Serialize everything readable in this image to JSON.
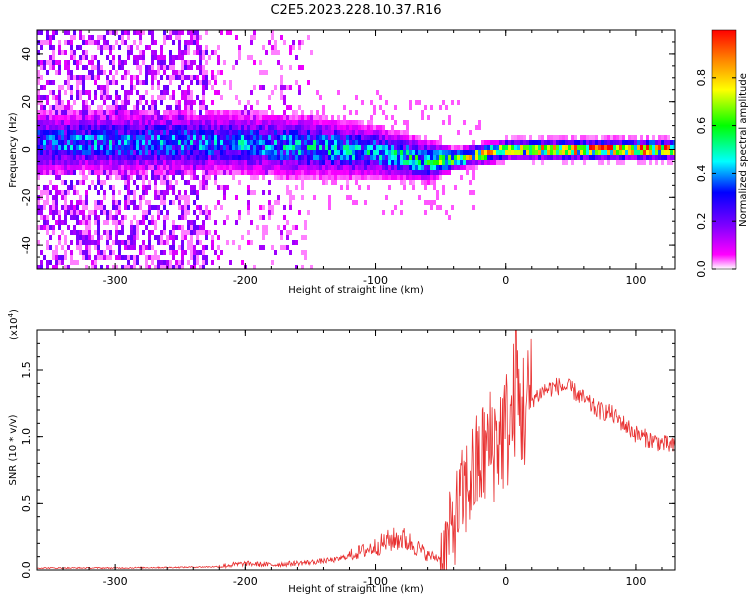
{
  "title": "C2E5.2023.228.10.37.R16",
  "chart_data": [
    {
      "type": "heatmap",
      "xlabel": "Height of straight line (km)",
      "ylabel": "Frequency (Hz)",
      "xlim": [
        -360,
        130
      ],
      "ylim": [
        -50,
        50
      ],
      "x_ticks": [
        -300,
        -200,
        -100,
        0,
        100
      ],
      "y_ticks": [
        -40,
        -20,
        0,
        20,
        40
      ],
      "colorbar": {
        "label": "Normalized spectral amplitude",
        "range": [
          0,
          1
        ],
        "ticks": [
          0.0,
          0.2,
          0.4,
          0.6,
          0.8
        ],
        "tick_labels": [
          "0.0",
          "0.2",
          "0.4",
          "0.6",
          "0.8"
        ],
        "colors": [
          "#ffffff",
          "#ff00ff",
          "#8000ff",
          "#0000ff",
          "#00ffff",
          "#00ff00",
          "#ffff00",
          "#ff0000"
        ]
      },
      "signal_band": [
        {
          "x": -220,
          "freq_center": 4,
          "freq_spread": 6,
          "amplitude": 0.35
        },
        {
          "x": -150,
          "freq_center": 2,
          "freq_spread": 6,
          "amplitude": 0.4
        },
        {
          "x": -100,
          "freq_center": 0,
          "freq_spread": 5,
          "amplitude": 0.4
        },
        {
          "x": -60,
          "freq_center": -4,
          "freq_spread": 4,
          "amplitude": 0.45
        },
        {
          "x": -40,
          "freq_center": -3,
          "freq_spread": 2,
          "amplitude": 0.65
        },
        {
          "x": 0,
          "freq_center": 1,
          "freq_spread": 2,
          "amplitude": 0.65
        },
        {
          "x": 80,
          "freq_center": 1,
          "freq_spread": 2,
          "amplitude": 0.85
        },
        {
          "x": 130,
          "freq_center": 1,
          "freq_spread": 2,
          "amplitude": 0.75
        }
      ]
    },
    {
      "type": "line",
      "xlabel": "Height of straight line (km)",
      "ylabel": "SNR (10 * v/v)",
      "y_multiplier": "(x10",
      "y_exponent": "4",
      "y_multiplier_close": ")",
      "xlim": [
        -360,
        130
      ],
      "ylim": [
        0,
        1.8
      ],
      "x_ticks": [
        -300,
        -200,
        -100,
        0,
        100
      ],
      "y_ticks": [
        0.0,
        0.5,
        1.0,
        1.5
      ],
      "y_tick_labels": [
        "0.0",
        "0.5",
        "1.0",
        "1.5"
      ],
      "series": [
        {
          "color": "#e83030",
          "x": [
            -360,
            -300,
            -250,
            -220,
            -200,
            -180,
            -150,
            -130,
            -120,
            -100,
            -90,
            -80,
            -70,
            -60,
            -50,
            -45,
            -40,
            -35,
            -30,
            -25,
            -20,
            -15,
            -10,
            -5,
            0,
            5,
            8,
            10,
            15,
            20,
            30,
            40,
            50,
            60,
            70,
            80,
            90,
            100,
            110,
            120,
            130
          ],
          "values": [
            0.01,
            0.01,
            0.015,
            0.02,
            0.04,
            0.03,
            0.05,
            0.07,
            0.1,
            0.16,
            0.2,
            0.22,
            0.17,
            0.1,
            0.08,
            0.2,
            0.35,
            0.5,
            0.62,
            0.72,
            0.8,
            0.9,
            0.95,
            1.0,
            1.05,
            1.1,
            1.5,
            1.2,
            1.2,
            1.28,
            1.35,
            1.38,
            1.36,
            1.28,
            1.2,
            1.18,
            1.1,
            1.02,
            0.98,
            0.95,
            0.92
          ]
        }
      ]
    }
  ]
}
